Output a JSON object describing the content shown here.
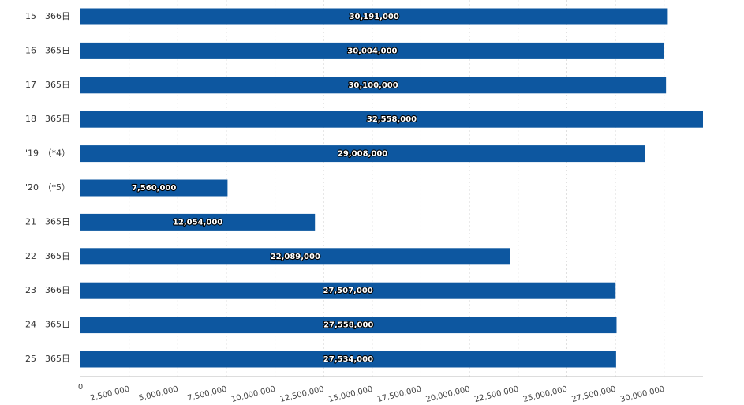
{
  "chart_data": {
    "type": "hbar",
    "categories": [
      "'15　366日",
      "'16　365日",
      "'17　365日",
      "'18　365日",
      "'19　（*4）",
      "'20　（*5）",
      "'21　365日",
      "'22　365日",
      "'23　366日",
      "'24　365日",
      "'25　365日"
    ],
    "values": [
      30191000,
      30004000,
      30100000,
      32558000,
      29008000,
      7560000,
      12054000,
      22089000,
      27507000,
      27558000,
      27534000
    ],
    "value_labels": [
      "30,191,000",
      "30,004,000",
      "30,100,000",
      "32,558,000",
      "29,008,000",
      "7,560,000",
      "12,054,000",
      "22,089,000",
      "27,507,000",
      "27,558,000",
      "27,534,000"
    ],
    "color": "#0d57a0",
    "xlim": [
      0,
      32000000
    ],
    "xticks": [
      0,
      {
        "value": 2500000,
        "label": "2,500,000"
      },
      {
        "value": 5000000,
        "label": "5,000,000"
      },
      {
        "value": 7500000,
        "label": "7,500,000"
      },
      {
        "value": 10000000,
        "label": "10,000,000"
      },
      {
        "value": 12500000,
        "label": "12,500,000"
      },
      {
        "value": 15000000,
        "label": "15,000,000"
      },
      {
        "value": 17500000,
        "label": "17,500,000"
      },
      {
        "value": 20000000,
        "label": "20,000,000"
      },
      {
        "value": 22500000,
        "label": "22,500,000"
      },
      {
        "value": 25000000,
        "label": "25,000,000"
      },
      {
        "value": 27500000,
        "label": "27,500,000"
      },
      {
        "value": 30000000,
        "label": "30,000,000"
      }
    ],
    "grid": true
  }
}
